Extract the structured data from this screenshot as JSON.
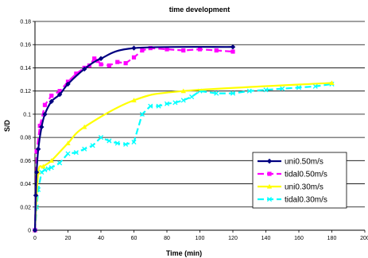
{
  "chart_data": {
    "type": "line",
    "title": "time development",
    "xlabel": "Time (min)",
    "ylabel": "S/D",
    "xlim": [
      0,
      200
    ],
    "ylim": [
      0,
      0.18
    ],
    "xticks": [
      "0",
      "20",
      "40",
      "60",
      "80",
      "100",
      "120",
      "140",
      "160",
      "180",
      "200"
    ],
    "yticks": [
      "0",
      "0.02",
      "0.04",
      "0.06",
      "0.08",
      "0.1",
      "0.12",
      "0.14",
      "0.16",
      "0.18"
    ],
    "grid": "horizontal",
    "legend_position": "right",
    "series": [
      {
        "name": "uni0.50m/s",
        "color": "#000080",
        "marker": "diamond",
        "dash": "solid",
        "smooth": true,
        "points": [
          [
            0,
            0
          ],
          [
            0.5,
            0.03
          ],
          [
            1,
            0.05
          ],
          [
            2,
            0.07
          ],
          [
            4,
            0.089
          ],
          [
            6,
            0.1
          ],
          [
            10,
            0.111
          ],
          [
            15,
            0.117
          ],
          [
            20,
            0.126
          ],
          [
            30,
            0.139
          ],
          [
            40,
            0.148
          ],
          [
            60,
            0.157
          ],
          [
            120,
            0.158
          ]
        ]
      },
      {
        "name": "tidal0.50m/s",
        "color": "#FF00FF",
        "marker": "square",
        "dash": "dashed",
        "smooth": false,
        "points": [
          [
            0,
            0
          ],
          [
            1,
            0.068
          ],
          [
            3,
            0.09
          ],
          [
            6,
            0.108
          ],
          [
            10,
            0.116
          ],
          [
            15,
            0.12
          ],
          [
            20,
            0.128
          ],
          [
            25,
            0.135
          ],
          [
            30,
            0.14
          ],
          [
            33,
            0.142
          ],
          [
            36,
            0.148
          ],
          [
            38,
            0.146
          ],
          [
            40,
            0.143
          ],
          [
            45,
            0.142
          ],
          [
            50,
            0.145
          ],
          [
            55,
            0.144
          ],
          [
            60,
            0.149
          ],
          [
            65,
            0.155
          ],
          [
            70,
            0.157
          ],
          [
            80,
            0.156
          ],
          [
            90,
            0.155
          ],
          [
            100,
            0.156
          ],
          [
            110,
            0.155
          ],
          [
            120,
            0.154
          ]
        ]
      },
      {
        "name": "uni0.30m/s",
        "color": "#FFFF00",
        "marker": "triangle",
        "dash": "solid",
        "smooth": true,
        "points": [
          [
            0,
            0
          ],
          [
            2,
            0.05
          ],
          [
            5,
            0.055
          ],
          [
            10,
            0.06
          ],
          [
            20,
            0.075
          ],
          [
            30,
            0.089
          ],
          [
            60,
            0.112
          ],
          [
            90,
            0.12
          ],
          [
            180,
            0.127
          ]
        ]
      },
      {
        "name": "tidal0.30m/s",
        "color": "#00FFFF",
        "marker": "x",
        "dash": "dashed",
        "smooth": false,
        "points": [
          [
            0,
            0
          ],
          [
            1,
            0.02
          ],
          [
            2,
            0.035
          ],
          [
            4,
            0.05
          ],
          [
            6,
            0.052
          ],
          [
            8,
            0.053
          ],
          [
            10,
            0.054
          ],
          [
            15,
            0.058
          ],
          [
            20,
            0.066
          ],
          [
            25,
            0.067
          ],
          [
            30,
            0.07
          ],
          [
            35,
            0.073
          ],
          [
            40,
            0.08
          ],
          [
            45,
            0.077
          ],
          [
            50,
            0.075
          ],
          [
            55,
            0.074
          ],
          [
            60,
            0.076
          ],
          [
            65,
            0.1
          ],
          [
            70,
            0.107
          ],
          [
            75,
            0.107
          ],
          [
            80,
            0.109
          ],
          [
            85,
            0.11
          ],
          [
            90,
            0.112
          ],
          [
            95,
            0.115
          ],
          [
            100,
            0.12
          ],
          [
            110,
            0.118
          ],
          [
            120,
            0.118
          ],
          [
            130,
            0.12
          ],
          [
            140,
            0.121
          ],
          [
            150,
            0.122
          ],
          [
            160,
            0.123
          ],
          [
            170,
            0.124
          ],
          [
            180,
            0.126
          ]
        ]
      }
    ]
  }
}
